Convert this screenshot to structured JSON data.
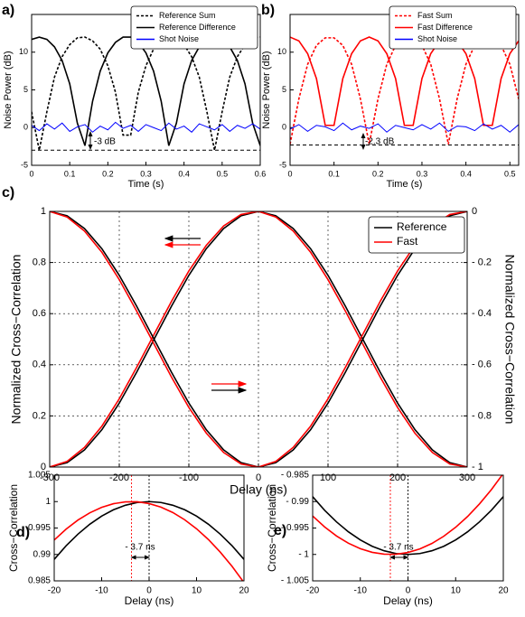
{
  "chart_data": [
    {
      "type": "line",
      "panel_label": "a)",
      "xlabel": "Time (s)",
      "ylabel": "Noise Power (dB)",
      "x": [
        0,
        0.02,
        0.04,
        0.06,
        0.08,
        0.1,
        0.12,
        0.14,
        0.16,
        0.18,
        0.2,
        0.22,
        0.24,
        0.26,
        0.28,
        0.3,
        0.32,
        0.34,
        0.36,
        0.38,
        0.4,
        0.42,
        0.44,
        0.46,
        0.48,
        0.5,
        0.52,
        0.54,
        0.56,
        0.58,
        0.6
      ],
      "xlim": [
        0,
        0.6
      ],
      "xticks": [
        0,
        0.1,
        0.2,
        0.3,
        0.4,
        0.5,
        0.6
      ],
      "ylim": [
        -5,
        15
      ],
      "yticks": [
        -5,
        0,
        5,
        10
      ],
      "grid": false,
      "legend": "upper right",
      "series": [
        {
          "name": "Reference Sum",
          "color": "#000000",
          "dash": "dashed",
          "values": [
            2.1,
            -3.0,
            2.1,
            6.7,
            9.4,
            11.0,
            11.9,
            12.0,
            11.5,
            10.4,
            8.2,
            4.7,
            -1.0,
            -1.0,
            4.7,
            8.2,
            10.4,
            11.5,
            12.0,
            11.9,
            11.0,
            9.4,
            6.7,
            2.1,
            -3.0,
            2.1,
            6.7,
            9.4,
            11.0,
            11.9,
            12.0
          ]
        },
        {
          "name": "Reference Difference",
          "color": "#000000",
          "dash": "solid",
          "values": [
            11.7,
            12.0,
            11.7,
            10.7,
            8.9,
            5.8,
            0.6,
            -2.4,
            3.5,
            7.5,
            9.9,
            11.3,
            12.0,
            12.0,
            11.3,
            9.9,
            7.5,
            3.5,
            -2.4,
            0.6,
            5.8,
            8.9,
            10.7,
            11.7,
            12.0,
            11.7,
            10.7,
            8.9,
            5.8,
            0.6,
            -2.4
          ]
        },
        {
          "name": "Shot Noise",
          "color": "#0000ff",
          "dash": "solid",
          "values": [
            0.3,
            -0.4,
            0.5,
            -0.2,
            0.6,
            -0.5,
            0.1,
            0.4,
            -0.6,
            0.2,
            -0.3,
            0.7,
            -0.1,
            0.3,
            -0.5,
            0.4,
            0,
            -0.4,
            0.6,
            -0.2,
            0.2,
            -0.6,
            0.5,
            0.1,
            -0.3,
            0.4,
            -0.5,
            0.3,
            -0.1,
            0.5,
            -0.2
          ]
        }
      ],
      "hline": -3,
      "annotation": "-3 dB"
    },
    {
      "type": "line",
      "panel_label": "b)",
      "xlabel": "Time (s)",
      "ylabel": "Noise Power (dB)",
      "x": [
        0,
        0.02,
        0.04,
        0.06,
        0.08,
        0.1,
        0.12,
        0.14,
        0.16,
        0.18,
        0.2,
        0.22,
        0.24,
        0.26,
        0.28,
        0.3,
        0.32,
        0.34,
        0.36,
        0.38,
        0.4,
        0.42,
        0.44,
        0.46,
        0.48,
        0.5,
        0.52
      ],
      "xlim": [
        0,
        0.52
      ],
      "xticks": [
        0,
        0.1,
        0.2,
        0.3,
        0.4,
        0.5
      ],
      "ylim": [
        -5,
        15
      ],
      "yticks": [
        -5,
        0,
        5,
        10
      ],
      "grid": false,
      "legend": "upper right",
      "series": [
        {
          "name": "Fast Sum",
          "color": "#ff0000",
          "dash": "dashed",
          "values": [
            -2.2,
            3.8,
            8.4,
            10.9,
            11.9,
            11.9,
            10.9,
            8.4,
            3.8,
            -2.2,
            3.8,
            8.4,
            10.9,
            11.9,
            11.9,
            10.9,
            8.4,
            3.8,
            -2.2,
            3.8,
            8.4,
            10.9,
            11.9,
            11.9,
            10.9,
            8.4,
            3.8
          ]
        },
        {
          "name": "Fast Difference",
          "color": "#ff0000",
          "dash": "solid",
          "values": [
            12.0,
            11.5,
            9.8,
            6.5,
            0.3,
            0.3,
            6.5,
            9.8,
            11.5,
            12.0,
            11.5,
            9.8,
            6.5,
            0.3,
            0.3,
            6.5,
            9.8,
            11.5,
            12.0,
            11.5,
            9.8,
            6.5,
            0.3,
            0.3,
            6.5,
            9.8,
            11.5
          ]
        },
        {
          "name": "Shot Noise",
          "color": "#0000ff",
          "dash": "solid",
          "values": [
            -0.2,
            0.4,
            -0.5,
            0.3,
            0.1,
            -0.4,
            0.6,
            -0.3,
            0.2,
            -0.1,
            0.5,
            -0.6,
            0.3,
            0,
            -0.3,
            0.4,
            -0.2,
            0.6,
            -0.5,
            0.2,
            0.1,
            -0.4,
            0.5,
            -0.2,
            0.3,
            -0.6,
            0.4
          ]
        }
      ],
      "hline": -2.3,
      "annotation": "-2.3 dB"
    },
    {
      "type": "line",
      "panel_label": "c)",
      "xlabel": "Delay (ns)",
      "ylabel": "Normalized Cross−Correlation",
      "y2label": "Normalized Cross−Correlation",
      "x": [
        -300,
        -275,
        -250,
        -225,
        -200,
        -175,
        -150,
        -125,
        -100,
        -75,
        -50,
        -25,
        0,
        25,
        50,
        75,
        100,
        125,
        150,
        175,
        200,
        225,
        250,
        275,
        300
      ],
      "xlim": [
        -300,
        300
      ],
      "xticks": [
        -300,
        -200,
        -100,
        0,
        100,
        200,
        300
      ],
      "ylim": [
        0,
        1
      ],
      "yticks": [
        0,
        0.2,
        0.4,
        0.6,
        0.8,
        1
      ],
      "y2lim": [
        -1,
        0
      ],
      "y2ticks": [
        {
          "value": -1,
          "label": "- 1"
        },
        {
          "value": -0.8,
          "label": "- 0.8"
        },
        {
          "value": -0.6,
          "label": "- 0.6"
        },
        {
          "value": -0.4,
          "label": "- 0.4"
        },
        {
          "value": -0.2,
          "label": "- 0.2"
        },
        0
      ],
      "grid": true,
      "legend": "upper right",
      "series": [
        {
          "name": "Reference",
          "color": "#000000",
          "dash": "solid",
          "values": [
            0,
            0.017,
            0.067,
            0.146,
            0.25,
            0.371,
            0.5,
            0.629,
            0.75,
            0.854,
            0.933,
            0.983,
            1,
            0.983,
            0.933,
            0.854,
            0.75,
            0.629,
            0.5,
            0.371,
            0.25,
            0.146,
            0.067,
            0.017,
            0
          ]
        },
        {
          "name": "Fast",
          "color": "#ff0000",
          "dash": "solid",
          "values": [
            0,
            0.022,
            0.077,
            0.16,
            0.267,
            0.39,
            0.519,
            0.648,
            0.767,
            0.867,
            0.943,
            0.988,
            1,
            0.978,
            0.923,
            0.84,
            0.733,
            0.61,
            0.481,
            0.352,
            0.233,
            0.132,
            0.057,
            0.012,
            0
          ]
        },
        {
          "color": "#000000",
          "dash": "solid",
          "axis": "y2",
          "values": [
            0,
            -0.017,
            -0.067,
            -0.146,
            -0.25,
            -0.371,
            -0.5,
            -0.629,
            -0.75,
            -0.854,
            -0.933,
            -0.983,
            -1,
            -0.983,
            -0.933,
            -0.854,
            -0.75,
            -0.629,
            -0.5,
            -0.371,
            -0.25,
            -0.146,
            -0.067,
            -0.017,
            0
          ]
        },
        {
          "color": "#ff0000",
          "dash": "solid",
          "axis": "y2",
          "values": [
            0,
            -0.022,
            -0.077,
            -0.16,
            -0.267,
            -0.39,
            -0.519,
            -0.648,
            -0.767,
            -0.867,
            -0.943,
            -0.988,
            -1,
            -0.978,
            -0.923,
            -0.84,
            -0.733,
            -0.61,
            -0.481,
            -0.352,
            -0.233,
            -0.132,
            -0.057,
            -0.012,
            0
          ]
        }
      ]
    },
    {
      "type": "line",
      "panel_label": "d)",
      "xlabel": "Delay (ns)",
      "ylabel": "Cross−Correlation",
      "x": [
        -20,
        -17.5,
        -15,
        -12.5,
        -10,
        -7.5,
        -5,
        -2.5,
        0,
        2.5,
        5,
        7.5,
        10,
        12.5,
        15,
        17.5,
        20
      ],
      "xlim": [
        -20,
        20
      ],
      "xticks": [
        -20,
        -10,
        0,
        10,
        20
      ],
      "ylim": [
        0.985,
        1.005
      ],
      "yticks": [
        0.985,
        0.99,
        0.995,
        1,
        1.005
      ],
      "grid": false,
      "series": [
        {
          "color": "#000000",
          "dash": "solid",
          "values": [
            0.98907,
            0.99163,
            0.99384,
            0.99572,
            0.99726,
            0.99846,
            0.99931,
            0.99983,
            1,
            0.99983,
            0.99931,
            0.99846,
            0.99726,
            0.99572,
            0.99384,
            0.99163,
            0.98907
          ]
        },
        {
          "color": "#ff0000",
          "dash": "solid",
          "values": [
            0.99273,
            0.99479,
            0.9965,
            0.99788,
            0.99891,
            0.9996,
            0.99995,
            0.99996,
            0.99962,
            0.99895,
            0.99793,
            0.99656,
            0.99486,
            0.99282,
            0.99044,
            0.98773,
            0.98468
          ]
        }
      ],
      "vlines": [
        -3.7,
        0
      ],
      "vline_colors": [
        "#ff0000",
        "#000000"
      ],
      "annotation": "- 3.7 ns"
    },
    {
      "type": "line",
      "panel_label": "e)",
      "xlabel": "Delay (ns)",
      "ylabel": "Cross−Correlation",
      "x": [
        -20,
        -17.5,
        -15,
        -12.5,
        -10,
        -7.5,
        -5,
        -2.5,
        0,
        2.5,
        5,
        7.5,
        10,
        12.5,
        15,
        17.5,
        20
      ],
      "xlim": [
        -20,
        20
      ],
      "xticks": [
        -20,
        -10,
        0,
        10,
        20
      ],
      "ylim": [
        -1.005,
        -0.985
      ],
      "yticks": [
        {
          "value": -1.005,
          "label": "- 1.005"
        },
        {
          "value": -1,
          "label": "- 1"
        },
        {
          "value": -0.995,
          "label": "- 0.995"
        },
        {
          "value": -0.99,
          "label": "- 0.99"
        },
        {
          "value": -0.985,
          "label": "- 0.985"
        }
      ],
      "grid": false,
      "series": [
        {
          "color": "#000000",
          "dash": "solid",
          "values": [
            -0.98907,
            -0.99163,
            -0.99384,
            -0.99572,
            -0.99726,
            -0.99846,
            -0.99931,
            -0.99983,
            -1,
            -0.99983,
            -0.99931,
            -0.99846,
            -0.99726,
            -0.99572,
            -0.99384,
            -0.99163,
            -0.98907
          ]
        },
        {
          "color": "#ff0000",
          "dash": "solid",
          "values": [
            -0.99273,
            -0.99479,
            -0.9965,
            -0.99788,
            -0.99891,
            -0.9996,
            -0.99995,
            -0.99996,
            -0.99962,
            -0.99895,
            -0.99793,
            -0.99656,
            -0.99486,
            -0.99282,
            -0.99044,
            -0.98773,
            -0.98468
          ]
        }
      ],
      "vlines": [
        -3.7,
        0
      ],
      "vline_colors": [
        "#ff0000",
        "#000000"
      ],
      "annotation": "- 3.7 ns"
    }
  ]
}
